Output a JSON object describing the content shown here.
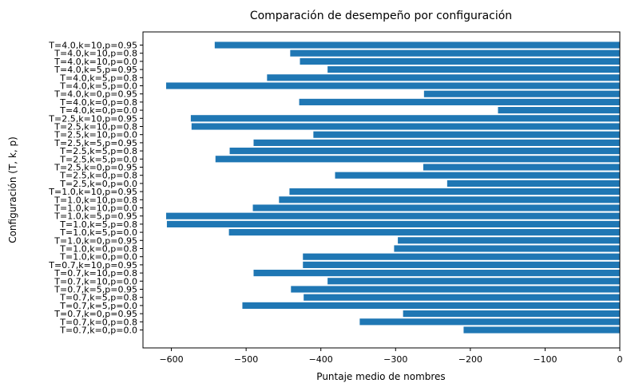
{
  "chart_data": {
    "type": "bar",
    "orientation": "horizontal",
    "title": "Comparación de desempeño por configuración",
    "xlabel": "Puntaje medio de nombres",
    "ylabel": "Configuración (T, k, p)",
    "xlim": [
      -638,
      0
    ],
    "xticks": [
      -600,
      -500,
      -400,
      -300,
      -200,
      -100,
      0
    ],
    "xtick_labels": [
      "−600",
      "−500",
      "−400",
      "−300",
      "−200",
      "−100",
      "0"
    ],
    "grid": false,
    "bar_color": "#1f77b4",
    "categories": [
      "T=0.7,k=0,p=0.0",
      "T=0.7,k=0,p=0.8",
      "T=0.7,k=0,p=0.95",
      "T=0.7,k=5,p=0.0",
      "T=0.7,k=5,p=0.8",
      "T=0.7,k=5,p=0.95",
      "T=0.7,k=10,p=0.0",
      "T=0.7,k=10,p=0.8",
      "T=0.7,k=10,p=0.95",
      "T=1.0,k=0,p=0.0",
      "T=1.0,k=0,p=0.8",
      "T=1.0,k=0,p=0.95",
      "T=1.0,k=5,p=0.0",
      "T=1.0,k=5,p=0.8",
      "T=1.0,k=5,p=0.95",
      "T=1.0,k=10,p=0.0",
      "T=1.0,k=10,p=0.8",
      "T=1.0,k=10,p=0.95",
      "T=2.5,k=0,p=0.0",
      "T=2.5,k=0,p=0.8",
      "T=2.5,k=0,p=0.95",
      "T=2.5,k=5,p=0.0",
      "T=2.5,k=5,p=0.8",
      "T=2.5,k=5,p=0.95",
      "T=2.5,k=10,p=0.0",
      "T=2.5,k=10,p=0.8",
      "T=2.5,k=10,p=0.95",
      "T=4.0,k=0,p=0.0",
      "T=4.0,k=0,p=0.8",
      "T=4.0,k=0,p=0.95",
      "T=4.0,k=5,p=0.0",
      "T=4.0,k=5,p=0.8",
      "T=4.0,k=5,p=0.95",
      "T=4.0,k=10,p=0.0",
      "T=4.0,k=10,p=0.8",
      "T=4.0,k=10,p=0.95"
    ],
    "values": [
      -209,
      -348,
      -290,
      -505,
      -423,
      -440,
      -391,
      -490,
      -424,
      -424,
      -302,
      -297,
      -523,
      -606,
      -607,
      -491,
      -456,
      -442,
      -231,
      -381,
      -263,
      -541,
      -522,
      -490,
      -410,
      -573,
      -574,
      -163,
      -429,
      -262,
      -607,
      -472,
      -391,
      -428,
      -441,
      -542
    ]
  }
}
